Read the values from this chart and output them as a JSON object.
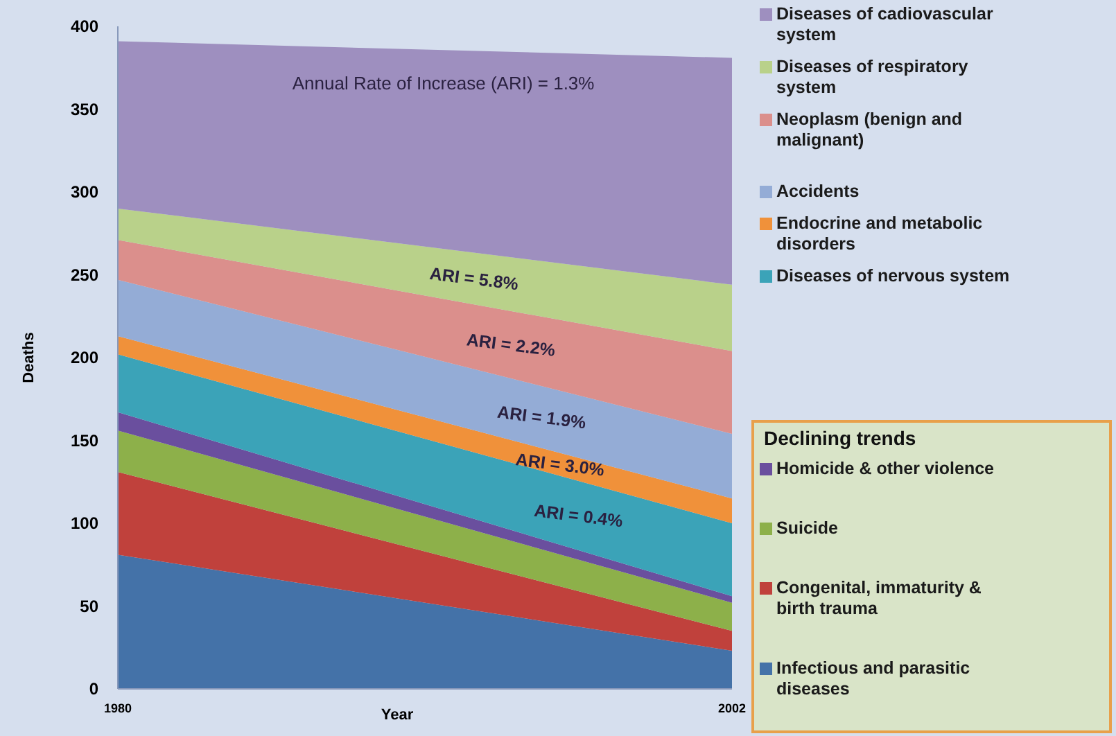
{
  "chart_data": {
    "type": "area",
    "stacked": true,
    "xlabel": "Year",
    "ylabel": "Deaths",
    "x": [
      1980,
      2002
    ],
    "xlim": [
      1980,
      2002
    ],
    "xticks": [
      1980,
      2002
    ],
    "ylim": [
      0,
      400
    ],
    "yticks": [
      0,
      50,
      100,
      150,
      200,
      250,
      300,
      350,
      400
    ],
    "grid": false,
    "legend": "right",
    "legend_title": "Declining trends",
    "series": [
      {
        "name": "Infectious and parasitic diseases",
        "color": "#4472a8",
        "values": [
          81,
          23
        ]
      },
      {
        "name": "Congenital, immaturity & birth trauma",
        "color": "#c0413c",
        "values": [
          50,
          12
        ]
      },
      {
        "name": "Suicide",
        "color": "#8db04a",
        "values": [
          25,
          17
        ]
      },
      {
        "name": "Homicide & other violence",
        "color": "#6a4f9e",
        "values": [
          11,
          4
        ]
      },
      {
        "name": "Diseases of nervous system",
        "color": "#3ba3b8",
        "values": [
          35,
          44
        ]
      },
      {
        "name": "Endocrine and metabolic disorders",
        "color": "#f0913a",
        "values": [
          11,
          15
        ]
      },
      {
        "name": "Accidents",
        "color": "#94acd6",
        "values": [
          34,
          39
        ]
      },
      {
        "name": "Neoplasm (benign and malignant)",
        "color": "#db8f8c",
        "values": [
          24,
          50
        ]
      },
      {
        "name": "Diseases of respiratory system",
        "color": "#b9d18a",
        "values": [
          19,
          40
        ]
      },
      {
        "name": "Diseases of cadiovascular system",
        "color": "#9e8fbf",
        "values": [
          101,
          137
        ]
      }
    ],
    "annotations": [
      "Annual Rate of Increase (ARI) = 1.3%",
      "ARI = 5.8%",
      "ARI = 2.2%",
      "ARI = 1.9%",
      "ARI = 3.0%",
      "ARI = 0.4%"
    ]
  }
}
